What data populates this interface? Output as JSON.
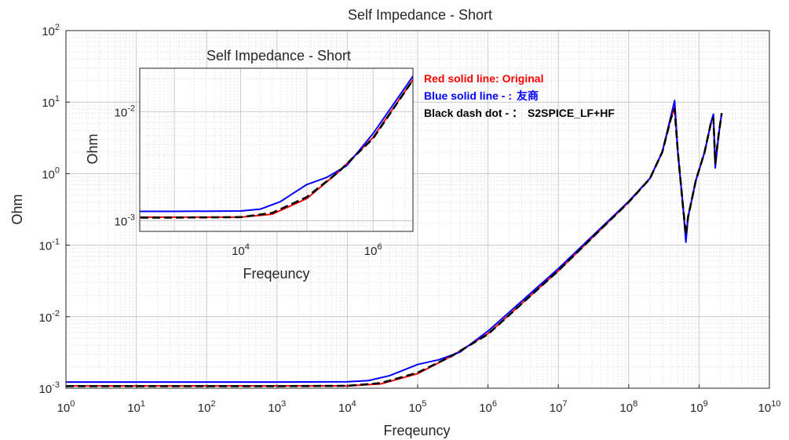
{
  "chart_data": {
    "type": "line",
    "title": "Self Impedance - Short",
    "xlabel": "Freqeuncy",
    "ylabel": "Ohm",
    "x_scale": "log",
    "y_scale": "log",
    "xlim": [
      1,
      10000000000
    ],
    "ylim": [
      0.001,
      100
    ],
    "grid": true,
    "minor_grid": true,
    "x_ticks": [
      {
        "base": "10",
        "exp": "0",
        "value": 1
      },
      {
        "base": "10",
        "exp": "1",
        "value": 10
      },
      {
        "base": "10",
        "exp": "2",
        "value": 100
      },
      {
        "base": "10",
        "exp": "3",
        "value": 1000
      },
      {
        "base": "10",
        "exp": "4",
        "value": 10000
      },
      {
        "base": "10",
        "exp": "5",
        "value": 100000
      },
      {
        "base": "10",
        "exp": "6",
        "value": 1000000
      },
      {
        "base": "10",
        "exp": "7",
        "value": 10000000
      },
      {
        "base": "10",
        "exp": "8",
        "value": 100000000
      },
      {
        "base": "10",
        "exp": "9",
        "value": 1000000000
      },
      {
        "base": "10",
        "exp": "10",
        "value": 10000000000
      }
    ],
    "y_ticks": [
      {
        "base": "10",
        "exp": "-3",
        "value": 0.001
      },
      {
        "base": "10",
        "exp": "-2",
        "value": 0.01
      },
      {
        "base": "10",
        "exp": "-1",
        "value": 0.1
      },
      {
        "base": "10",
        "exp": "0",
        "value": 1
      },
      {
        "base": "10",
        "exp": "1",
        "value": 10
      },
      {
        "base": "10",
        "exp": "2",
        "value": 100
      }
    ],
    "series": [
      {
        "name": "Original",
        "color": "#ff0000",
        "style": "solid",
        "x": [
          1,
          1000,
          10000,
          30000,
          100000,
          300000,
          1000000,
          10000000,
          100000000,
          200000000,
          300000000,
          400000000,
          450000000,
          500000000,
          600000000,
          650000000,
          700000000,
          900000000,
          1200000000,
          1500000000,
          1600000000,
          1700000000,
          1900000000,
          2100000000
        ],
        "y": [
          0.00108,
          0.00108,
          0.00108,
          0.00115,
          0.0016,
          0.0028,
          0.0058,
          0.044,
          0.4,
          0.85,
          2.0,
          6.0,
          8.5,
          2.0,
          0.3,
          0.13,
          0.25,
          0.8,
          2.0,
          5.5,
          6.5,
          1.3,
          3.5,
          7.0
        ]
      },
      {
        "name": "友商",
        "color": "#0000ff",
        "style": "solid",
        "x": [
          1,
          1000,
          10000,
          20000,
          40000,
          100000,
          200000,
          400000,
          1000000,
          10000000,
          100000000,
          200000000,
          300000000,
          400000000,
          450000000,
          500000000,
          600000000,
          650000000,
          700000000,
          900000000,
          1200000000,
          1500000000,
          1600000000,
          1700000000,
          1900000000,
          2100000000
        ],
        "y": [
          0.00122,
          0.00122,
          0.00123,
          0.00128,
          0.0015,
          0.00215,
          0.0025,
          0.0032,
          0.0063,
          0.047,
          0.41,
          0.86,
          2.0,
          6.5,
          10.5,
          2.0,
          0.3,
          0.11,
          0.25,
          0.8,
          2.0,
          5.5,
          6.8,
          1.2,
          3.5,
          7.0
        ]
      },
      {
        "name": "S2SPICE_LF+HF",
        "color": "#000000",
        "style": "dashdot",
        "x": [
          1,
          1000,
          10000,
          30000,
          100000,
          300000,
          1000000,
          10000000,
          100000000,
          200000000,
          300000000,
          400000000,
          450000000,
          500000000,
          600000000,
          650000000,
          700000000,
          900000000,
          1200000000,
          1500000000,
          1600000000,
          1700000000,
          1900000000,
          2100000000
        ],
        "y": [
          0.00107,
          0.00107,
          0.00108,
          0.00118,
          0.00165,
          0.0028,
          0.0057,
          0.044,
          0.4,
          0.85,
          2.0,
          6.0,
          8.0,
          2.0,
          0.3,
          0.14,
          0.25,
          0.8,
          2.0,
          5.5,
          6.0,
          1.4,
          3.5,
          7.0
        ]
      }
    ],
    "legend": {
      "placement": "top-right",
      "entries": [
        {
          "prefix": "Red solid line: Original",
          "suffix": "",
          "color": "#ff0000"
        },
        {
          "prefix": "Blue solid line - :",
          "suffix": "友商",
          "color": "#0000ff"
        },
        {
          "prefix": "Black dash dot - ：",
          "suffix": "S2SPICE_LF+HF",
          "color": "#000000"
        }
      ]
    },
    "inset": {
      "title": "Self Impedance - Short",
      "xlabel": "Freqeuncy",
      "ylabel": "Ohm",
      "xlim": [
        300,
        4000000
      ],
      "ylim": [
        0.0008,
        0.025
      ],
      "x_ticks": [
        {
          "base": "10",
          "exp": "4",
          "value": 10000
        },
        {
          "base": "10",
          "exp": "6",
          "value": 1000000
        }
      ],
      "y_ticks": [
        {
          "base": "10",
          "exp": "-3",
          "value": 0.001
        },
        {
          "base": "10",
          "exp": "-2",
          "value": 0.01
        }
      ]
    }
  }
}
